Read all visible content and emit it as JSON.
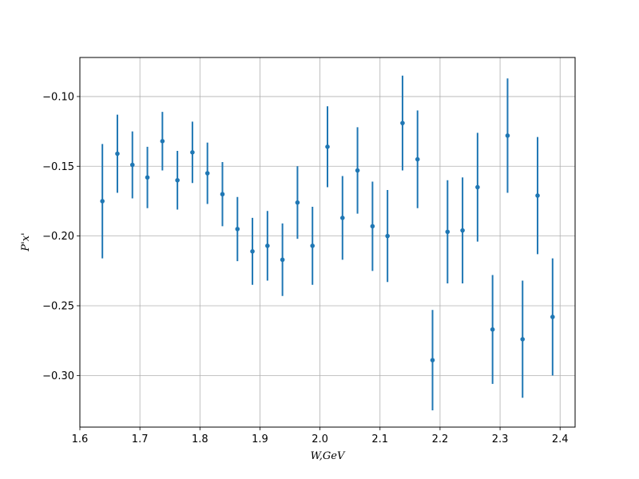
{
  "chart_data": {
    "type": "scatter",
    "xlabel": "W,GeV",
    "ylabel": "P'x'",
    "xlim": [
      1.6,
      2.425
    ],
    "ylim": [
      -0.337,
      -0.072
    ],
    "x_ticks": [
      1.6,
      1.7,
      1.8,
      1.9,
      2.0,
      2.1,
      2.2,
      2.3,
      2.4
    ],
    "x_tick_labels": [
      "1.6",
      "1.7",
      "1.8",
      "1.9",
      "2.0",
      "2.1",
      "2.2",
      "2.3",
      "2.4"
    ],
    "y_ticks": [
      -0.3,
      -0.25,
      -0.2,
      -0.15,
      -0.1
    ],
    "y_tick_labels": [
      "−0.30",
      "−0.25",
      "−0.20",
      "−0.15",
      "−0.10"
    ],
    "grid": true,
    "color": "#1f77b4",
    "series": [
      {
        "x": [
          1.6375,
          1.6625,
          1.6875,
          1.7125,
          1.7375,
          1.7625,
          1.7875,
          1.8125,
          1.8375,
          1.8625,
          1.8875,
          1.9125,
          1.9375,
          1.9625,
          1.9875,
          2.0125,
          2.0375,
          2.0625,
          2.0875,
          2.1125,
          2.1375,
          2.1625,
          2.1875,
          2.2125,
          2.2375,
          2.2625,
          2.2875,
          2.3125,
          2.3375,
          2.3625,
          2.3875
        ],
        "y": [
          -0.175,
          -0.141,
          -0.149,
          -0.158,
          -0.132,
          -0.16,
          -0.14,
          -0.155,
          -0.17,
          -0.195,
          -0.211,
          -0.207,
          -0.217,
          -0.176,
          -0.207,
          -0.136,
          -0.187,
          -0.153,
          -0.193,
          -0.2,
          -0.119,
          -0.145,
          -0.289,
          -0.197,
          -0.196,
          -0.165,
          -0.267,
          -0.128,
          -0.274,
          -0.171,
          -0.258
        ],
        "yerr": [
          0.041,
          0.028,
          0.024,
          0.022,
          0.021,
          0.021,
          0.022,
          0.022,
          0.023,
          0.023,
          0.024,
          0.025,
          0.026,
          0.026,
          0.028,
          0.029,
          0.03,
          0.031,
          0.032,
          0.033,
          0.034,
          0.035,
          0.036,
          0.037,
          0.038,
          0.039,
          0.039,
          0.041,
          0.042,
          0.042,
          0.042
        ]
      }
    ]
  }
}
